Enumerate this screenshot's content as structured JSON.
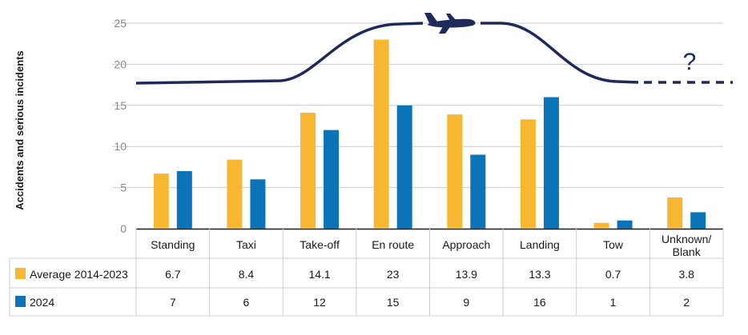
{
  "colors": {
    "average": "#F7B731",
    "y2024": "#0B73B8",
    "flight_path": "#1F2A5A",
    "grid": "#cccccc",
    "table_border": "#cfcfcf"
  },
  "icons": {
    "plane": "airplane-icon",
    "question": "question-mark-icon"
  },
  "annotation": {
    "question": "?"
  },
  "chart_data": {
    "type": "bar",
    "ylabel": "Accidents and serious incidents",
    "ylim": [
      0,
      25
    ],
    "yticks": [
      0,
      5,
      10,
      15,
      20,
      25
    ],
    "grid": true,
    "categories": [
      "Standing",
      "Taxi",
      "Take-off",
      "En route",
      "Approach",
      "Landing",
      "Tow",
      "Unknown/\nBlank"
    ],
    "series": [
      {
        "name": "Average 2014-2023",
        "values": [
          6.7,
          8.4,
          14.1,
          23,
          13.9,
          13.3,
          0.7,
          3.8
        ],
        "labels": [
          "6.7",
          "8.4",
          "14.1",
          "23",
          "13.9",
          "13.3",
          "0.7",
          "3.8"
        ]
      },
      {
        "name": "2024",
        "values": [
          7,
          6,
          12,
          15,
          9,
          16,
          1,
          2
        ],
        "labels": [
          "7",
          "6",
          "12",
          "15",
          "9",
          "16",
          "1",
          "2"
        ]
      }
    ]
  }
}
